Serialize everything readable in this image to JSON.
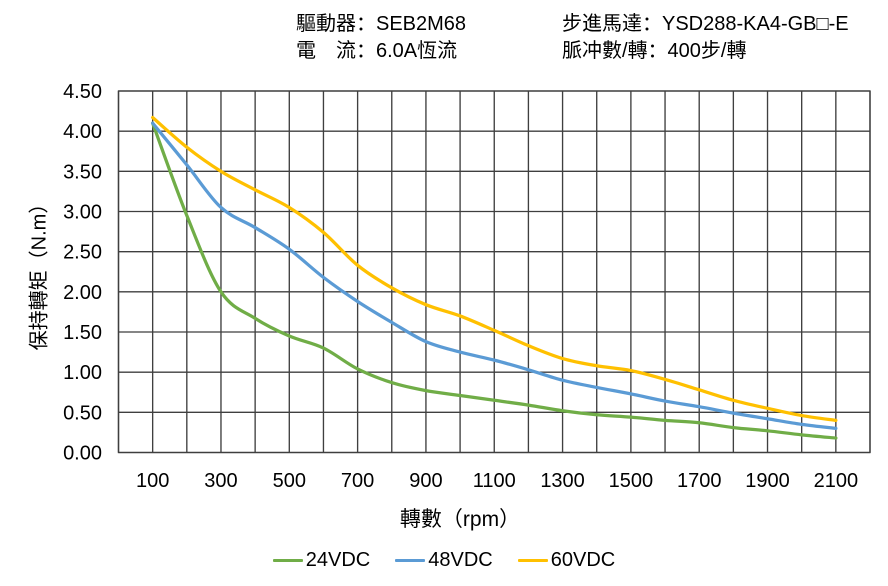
{
  "header": {
    "driver": "驅動器：SEB2M68",
    "motor": "步進馬達：YSD288-KA4-GB□-E",
    "current": "電　流：6.0A恆流",
    "pulses": "脈冲數/轉：400步/轉"
  },
  "chart_data": {
    "type": "line",
    "title": "",
    "xlabel": "轉數（rpm）",
    "ylabel": "保持轉矩（N.m）",
    "xlim": [
      0,
      2200
    ],
    "ylim": [
      0,
      4.5
    ],
    "x_grid_step": 100,
    "y_grid_step": 0.5,
    "grid": true,
    "gridline_color": "#3F3F3F",
    "axis_text_color": "#000000",
    "legend_position": "bottom",
    "x_ticks": [
      100,
      300,
      500,
      700,
      900,
      1100,
      1300,
      1500,
      1700,
      1900,
      2100
    ],
    "y_ticks": [
      0.0,
      0.5,
      1.0,
      1.5,
      2.0,
      2.5,
      3.0,
      3.5,
      4.0,
      4.5
    ],
    "x": [
      100,
      200,
      300,
      400,
      500,
      600,
      700,
      800,
      900,
      1000,
      1100,
      1200,
      1300,
      1400,
      1500,
      1600,
      1700,
      1800,
      1900,
      2000,
      2100
    ],
    "series": [
      {
        "name": "24VDC",
        "color": "#70AD47",
        "values": [
          4.1,
          2.95,
          2.0,
          1.67,
          1.45,
          1.3,
          1.04,
          0.87,
          0.77,
          0.71,
          0.65,
          0.59,
          0.52,
          0.47,
          0.44,
          0.4,
          0.37,
          0.31,
          0.27,
          0.22,
          0.18
        ]
      },
      {
        "name": "48VDC",
        "color": "#5B9BD5",
        "values": [
          4.1,
          3.58,
          3.05,
          2.8,
          2.53,
          2.18,
          1.88,
          1.62,
          1.38,
          1.25,
          1.15,
          1.03,
          0.9,
          0.81,
          0.73,
          0.64,
          0.57,
          0.49,
          0.42,
          0.35,
          0.3
        ]
      },
      {
        "name": "60VDC",
        "color": "#FFC000",
        "values": [
          4.17,
          3.8,
          3.5,
          3.27,
          3.05,
          2.74,
          2.33,
          2.05,
          1.84,
          1.7,
          1.52,
          1.33,
          1.17,
          1.08,
          1.02,
          0.91,
          0.78,
          0.65,
          0.55,
          0.46,
          0.4
        ]
      }
    ]
  }
}
